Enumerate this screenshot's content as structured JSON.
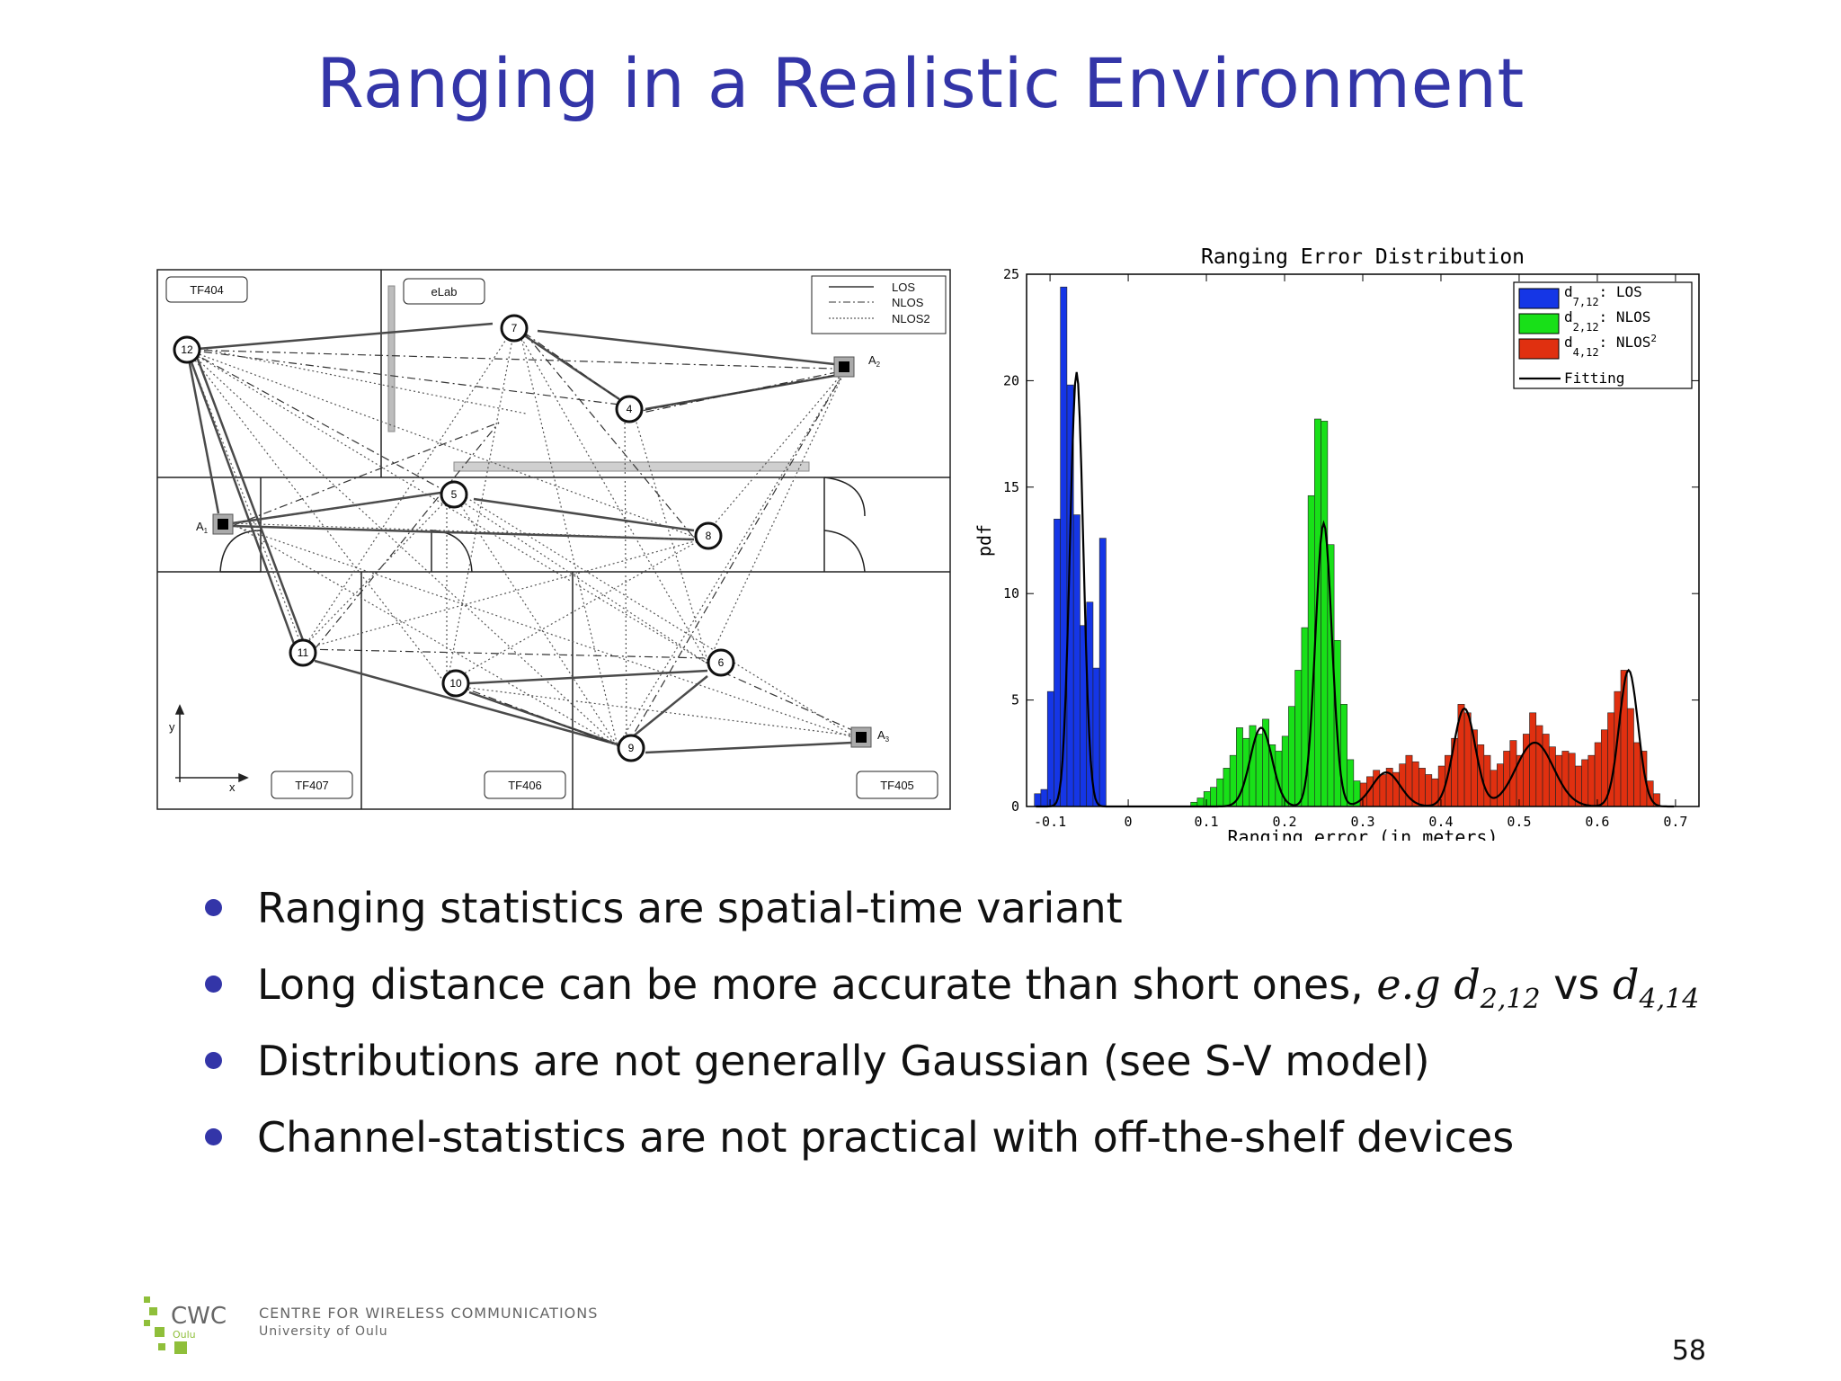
{
  "slide": {
    "title": "Ranging in a Realistic Environment",
    "page_number": "58"
  },
  "diagram": {
    "rooms": [
      "TF404",
      "eLab",
      "TF407",
      "TF406",
      "TF405"
    ],
    "legend": [
      "LOS",
      "NLOS",
      "NLOS2"
    ],
    "nodes": [
      "12",
      "7",
      "4",
      "5",
      "8",
      "11",
      "10",
      "6",
      "9"
    ],
    "anchors": [
      "A1",
      "A2",
      "A3"
    ],
    "axes": {
      "x": "x",
      "y": "y"
    }
  },
  "chart_data": {
    "type": "bar",
    "title": "Ranging Error Distribution",
    "xlabel": "Ranging error (in meters)",
    "ylabel": "pdf",
    "xlim": [
      -0.13,
      0.73
    ],
    "ylim": [
      0,
      25
    ],
    "xticks": [
      "-0.1",
      "0",
      "0.1",
      "0.2",
      "0.3",
      "0.4",
      "0.5",
      "0.6",
      "0.7"
    ],
    "yticks": [
      "0",
      "5",
      "10",
      "15",
      "20",
      "25"
    ],
    "legend_position": "top-right",
    "bin_width": 0.00833,
    "series": [
      {
        "name": "d7,12: LOS",
        "color": "#1536e6",
        "x": [
          -0.12,
          -0.1117,
          -0.1033,
          -0.095,
          -0.0867,
          -0.0783,
          -0.07,
          -0.0617,
          -0.0533,
          -0.045,
          -0.0367
        ],
        "values": [
          0.6,
          0.8,
          5.4,
          13.5,
          24.4,
          19.8,
          13.7,
          8.5,
          9.6,
          6.5,
          12.6
        ]
      },
      {
        "name": "d2,12: NLOS",
        "color": "#18e018",
        "x": [
          0.08,
          0.0883,
          0.0967,
          0.105,
          0.1133,
          0.1217,
          0.13,
          0.1383,
          0.1467,
          0.155,
          0.1633,
          0.1717,
          0.18,
          0.1883,
          0.1967,
          0.205,
          0.2133,
          0.2217,
          0.23,
          0.2383,
          0.2467,
          0.255,
          0.2633,
          0.2717,
          0.28,
          0.2883
        ],
        "values": [
          0.2,
          0.4,
          0.7,
          0.9,
          1.3,
          1.8,
          2.4,
          3.7,
          3.2,
          3.8,
          3.4,
          4.1,
          2.9,
          2.6,
          3.3,
          4.7,
          6.4,
          8.4,
          14.6,
          18.2,
          18.1,
          12.3,
          7.8,
          4.8,
          2.2,
          1.2
        ]
      },
      {
        "name": "d4,12: NLOS2",
        "color": "#e03010",
        "x": [
          0.2967,
          0.305,
          0.3133,
          0.3217,
          0.33,
          0.3383,
          0.3467,
          0.355,
          0.3633,
          0.3717,
          0.38,
          0.3883,
          0.3967,
          0.405,
          0.4133,
          0.4217,
          0.43,
          0.4383,
          0.4467,
          0.455,
          0.4633,
          0.4717,
          0.48,
          0.4883,
          0.4967,
          0.505,
          0.5133,
          0.5217,
          0.53,
          0.5383,
          0.5467,
          0.555,
          0.5633,
          0.5717,
          0.58,
          0.5883,
          0.5967,
          0.605,
          0.6133,
          0.6217,
          0.63,
          0.6383,
          0.6467,
          0.655,
          0.6633,
          0.6717
        ],
        "values": [
          1.1,
          1.4,
          1.7,
          1.5,
          1.8,
          1.6,
          2.0,
          2.4,
          2.1,
          1.8,
          1.5,
          1.3,
          1.9,
          2.4,
          3.2,
          4.8,
          4.4,
          3.6,
          2.9,
          2.4,
          1.7,
          2.0,
          2.6,
          3.1,
          2.4,
          3.4,
          4.4,
          3.8,
          3.4,
          2.8,
          2.4,
          2.6,
          2.5,
          1.9,
          2.2,
          2.4,
          3.0,
          3.6,
          4.4,
          5.4,
          6.4,
          4.6,
          3.0,
          2.6,
          1.2,
          0.6
        ]
      }
    ],
    "fitting": {
      "name": "Fitting",
      "color": "#111111"
    }
  },
  "bullets": [
    {
      "text": "Ranging statistics are spatial-time variant"
    },
    {
      "text": "Long distance can be more accurate than short ones, ",
      "m1": "e.g",
      "m2": "d",
      "m2sub": "2,12",
      "vs": " vs ",
      "m3": "d",
      "m3sub": "4,14"
    },
    {
      "text": "Distributions are not generally Gaussian (see S-V model)"
    },
    {
      "text": "Channel-statistics are not practical with off-the-shelf devices"
    }
  ],
  "footer": {
    "logo_text": "CWC",
    "logo_sub": "Oulu",
    "org_name": "CENTRE FOR WIRELESS COMMUNICATIONS",
    "org_sub": "University of Oulu"
  }
}
